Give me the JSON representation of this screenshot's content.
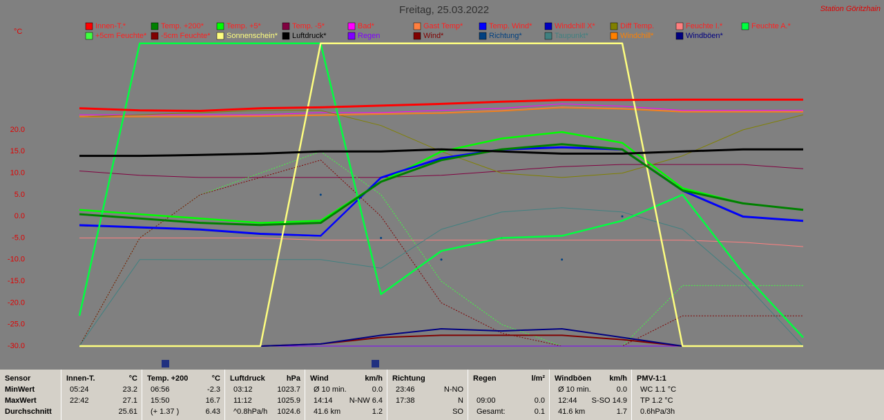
{
  "chart_data": {
    "type": "line",
    "title": "Freitag, 25.03.2022",
    "station": "Station Göritzhain",
    "y_label": "°C",
    "categories": [
      null,
      null,
      null,
      null,
      null,
      null,
      null,
      null,
      null,
      null,
      null,
      null,
      null
    ],
    "ylim": [
      -30,
      40
    ],
    "yticks": [
      {
        "value": 20,
        "label": "20.0"
      },
      {
        "value": 15,
        "label": "15.0"
      },
      {
        "value": 10,
        "label": "10.0"
      },
      {
        "value": 5,
        "label": "5.0"
      },
      {
        "value": 0,
        "label": "0.0"
      },
      {
        "value": -5,
        "label": "-5.0"
      },
      {
        "value": -10,
        "label": "-10.0"
      },
      {
        "value": -15,
        "label": "-15.0"
      },
      {
        "value": -20,
        "label": "-20.0"
      },
      {
        "value": -25,
        "label": "-25.0"
      },
      {
        "value": -30,
        "label": "-30.0"
      }
    ],
    "grid": false,
    "series": [
      {
        "name": "Innen-T.*",
        "color": "#ff0000",
        "values": [
          25,
          24.5,
          24.4,
          25,
          25.2,
          25.6,
          26,
          26.5,
          26.9,
          26.9,
          27,
          27,
          27
        ]
      },
      {
        "name": "Temp. +200*",
        "color": "#008000",
        "values": [
          0.5,
          -0.5,
          -1.5,
          -2,
          -1.5,
          8,
          13,
          15.5,
          16.7,
          15.5,
          6,
          3,
          1.5
        ]
      },
      {
        "name": "Temp. +5*",
        "color": "#00ff00",
        "values": [
          1.5,
          0.5,
          -0.5,
          -1.5,
          -1,
          8,
          15,
          18,
          19.5,
          17,
          6.5,
          3,
          1.5
        ]
      },
      {
        "name": "Temp. -5*",
        "color": "#800040",
        "values": [
          10.5,
          9.5,
          9,
          9,
          9,
          9,
          9.5,
          10.5,
          11.5,
          12,
          12,
          12,
          11
        ]
      },
      {
        "name": "Bad*",
        "color": "#ff00ff",
        "values": [
          23.5,
          23.5,
          23.5,
          23.5,
          24,
          24,
          24.5,
          25,
          26,
          25.5,
          24.5,
          24.5,
          24.5
        ]
      },
      {
        "name": "Gast Temp*",
        "color": "#ff8040",
        "values": [
          23.2,
          23.2,
          23.2,
          23.3,
          23.5,
          23.8,
          24,
          24.5,
          25.3,
          25,
          24.3,
          24.3,
          24.3
        ]
      },
      {
        "name": "Temp. Wind*",
        "color": "#0000ff",
        "values": [
          -2,
          -2.5,
          -3,
          -4,
          -4.5,
          9,
          13.5,
          15.5,
          16,
          15.5,
          6,
          0,
          -1
        ]
      },
      {
        "name": "Windchill X*",
        "color": "#0000c0",
        "values": [
          -2.2,
          -2.7,
          -3.2,
          -4.2,
          -4.6,
          8.8,
          13.3,
          15.3,
          15.8,
          15.3,
          5.8,
          -0.2,
          -1.2
        ]
      },
      {
        "name": "Diff Temp.",
        "color": "#808000",
        "values": [
          23,
          23.5,
          24,
          24.5,
          24.5,
          21,
          15,
          10,
          9,
          10,
          14,
          20,
          23.5
        ]
      },
      {
        "name": "Feuchte I.*",
        "color": "#ff8080",
        "values": [
          -5,
          -5,
          -5,
          -5,
          -5.5,
          -5.5,
          -5.5,
          -5.5,
          -5.5,
          -5.5,
          -5.5,
          -6,
          -7
        ]
      },
      {
        "name": "Feuchte A.*",
        "color": "#00ff40",
        "values": [
          -23,
          40,
          40,
          40,
          40,
          -18,
          -8,
          -5,
          -4.5,
          -1,
          5,
          -13,
          -28
        ]
      },
      {
        "name": "+5cm Feuchte*",
        "color": "#40ff40",
        "values": [
          -30,
          -5,
          5,
          10,
          15,
          5,
          -15,
          -25,
          -30,
          -30,
          -16,
          -16,
          -16
        ]
      },
      {
        "name": "-5cm Feuchte*",
        "color": "#800000",
        "values": [
          -30,
          -5,
          5,
          9,
          13,
          0,
          -20,
          -27,
          -30,
          -30,
          -23,
          -23,
          -23
        ]
      },
      {
        "name": "Sonnenschein*",
        "color": "#ffff80",
        "values": [
          -30,
          -30,
          -30,
          -30,
          40,
          40,
          40,
          40,
          40,
          40,
          -30,
          -30,
          -30
        ]
      },
      {
        "name": "Luftdruck*",
        "color": "#000000",
        "values": [
          14,
          14,
          14.2,
          14.5,
          15,
          15,
          15.5,
          15,
          14.5,
          14.5,
          15,
          15.5,
          15.5
        ]
      },
      {
        "name": "Regen",
        "color": "#8000ff",
        "values": [
          -30,
          -30,
          -30,
          -30,
          -30,
          -30,
          -30,
          -30,
          -30,
          -30,
          -30,
          -30,
          -30
        ]
      },
      {
        "name": "Wind*",
        "color": "#800000",
        "values": [
          -30,
          -30,
          -30,
          -30,
          -29.5,
          -28,
          -27.5,
          -27.5,
          -27.5,
          -28.5,
          -30,
          -30,
          -30
        ]
      },
      {
        "name": "Richtung*",
        "color": "#004080",
        "values": [
          null,
          null,
          null,
          null,
          5,
          -5,
          -10,
          -5,
          -10,
          0,
          null,
          null,
          null
        ]
      },
      {
        "name": "Taupunkt*",
        "color": "#408080",
        "values": [
          -30,
          -10,
          -10,
          -10,
          -10,
          -12,
          -3,
          1,
          2,
          1,
          -3,
          -15,
          -30
        ]
      },
      {
        "name": "Windchill*",
        "color": "#ff8000",
        "values": [
          23,
          23,
          23,
          23.1,
          23.3,
          23.6,
          23.8,
          24.3,
          25.1,
          24.8,
          24.1,
          24.1,
          24.1
        ]
      },
      {
        "name": "Windböen*",
        "color": "#000080",
        "values": [
          -30,
          -30,
          -30,
          -30,
          -29.5,
          -27.5,
          -26,
          -26.5,
          -26,
          -28,
          -30,
          -30,
          -30
        ]
      }
    ]
  },
  "table": {
    "panels": [
      {
        "header": [
          "Sensor"
        ],
        "rows": [
          [
            "MinWert"
          ],
          [
            "MaxWert"
          ],
          [
            "Durchschnitt"
          ]
        ]
      },
      {
        "header": [
          "Innen-T.",
          "°C"
        ],
        "rows": [
          [
            "05:24",
            "23.2"
          ],
          [
            "22:42",
            "27.1"
          ],
          [
            null,
            "25.61"
          ]
        ]
      },
      {
        "header": [
          "Temp. +200",
          "°C"
        ],
        "rows": [
          [
            "06:56",
            "-2.3"
          ],
          [
            "15:50",
            "16.7"
          ],
          [
            "(+ 1.37 )",
            "6.43"
          ]
        ]
      },
      {
        "header": [
          "Luftdruck",
          "hPa"
        ],
        "rows": [
          [
            "03:12",
            "1023.7"
          ],
          [
            "11:12",
            "1025.9"
          ],
          [
            "^0.8hPa/h",
            "1024.6"
          ]
        ]
      },
      {
        "header": [
          "Wind",
          "km/h"
        ],
        "rows": [
          [
            "Ø 10 min.",
            "0.0"
          ],
          [
            "14:14",
            "N-NW 6.4"
          ],
          [
            "41.6 km",
            "1.2"
          ]
        ]
      },
      {
        "header": [
          "Richtung"
        ],
        "rows": [
          [
            "23:46",
            "N-NO"
          ],
          [
            "17:38",
            "N"
          ],
          [
            null,
            "SO"
          ]
        ]
      },
      {
        "header": [
          "Regen",
          "l/m²"
        ],
        "rows": [
          [
            null,
            null
          ],
          [
            "09:00",
            "0.0"
          ],
          [
            "Gesamt:",
            "0.1"
          ]
        ]
      },
      {
        "header": [
          "Windböen",
          "km/h"
        ],
        "rows": [
          [
            "Ø 10 min.",
            "0.0"
          ],
          [
            "12:44",
            "S-SO 14.9"
          ],
          [
            "41.6 km",
            "1.7"
          ]
        ]
      },
      {
        "header": [
          "PMV-1:1"
        ],
        "rows": [
          [
            "WC 1.1 °C"
          ],
          [
            "TP 1.2 °C"
          ],
          [
            "0.6hPa/3h"
          ]
        ]
      }
    ]
  }
}
